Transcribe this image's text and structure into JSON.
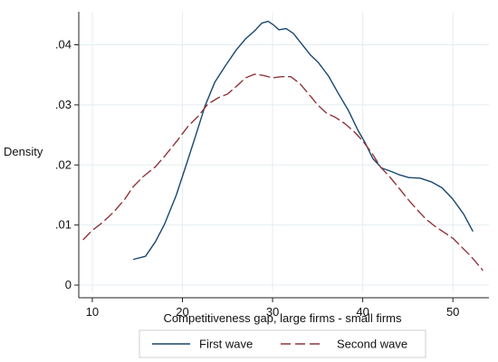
{
  "chart_data": {
    "type": "line",
    "title": "",
    "xlabel": "Competitiveness gap, large firms - small firms",
    "ylabel": "Density",
    "xlim": [
      8.5,
      54
    ],
    "ylim": [
      -0.0012,
      0.0455
    ],
    "x_ticks": [
      10,
      20,
      30,
      40,
      50
    ],
    "x_tick_labels": [
      "10",
      "20",
      "30",
      "40",
      "50"
    ],
    "y_ticks": [
      0,
      0.01,
      0.02,
      0.03,
      0.04
    ],
    "y_tick_labels": [
      "0",
      ".01",
      ".02",
      ".03",
      ".04"
    ],
    "grid": true,
    "legend_position": "bottom",
    "series": [
      {
        "name": "First wave",
        "color": "#1a476f",
        "dash": "solid",
        "points": [
          [
            14.6,
            0.0043
          ],
          [
            15.9,
            0.0048
          ],
          [
            17.0,
            0.0072
          ],
          [
            18.0,
            0.0101
          ],
          [
            19.3,
            0.0149
          ],
          [
            20.5,
            0.0204
          ],
          [
            21.6,
            0.0255
          ],
          [
            22.5,
            0.0298
          ],
          [
            23.6,
            0.0338
          ],
          [
            24.8,
            0.0366
          ],
          [
            26.0,
            0.0392
          ],
          [
            27.0,
            0.041
          ],
          [
            28.0,
            0.0423
          ],
          [
            28.8,
            0.0436
          ],
          [
            29.5,
            0.0439
          ],
          [
            30.1,
            0.0433
          ],
          [
            30.7,
            0.0425
          ],
          [
            31.5,
            0.0427
          ],
          [
            32.3,
            0.0419
          ],
          [
            33.2,
            0.0402
          ],
          [
            34.2,
            0.0383
          ],
          [
            35.1,
            0.037
          ],
          [
            36.2,
            0.0348
          ],
          [
            37.3,
            0.0319
          ],
          [
            38.4,
            0.0291
          ],
          [
            39.5,
            0.0257
          ],
          [
            40.3,
            0.0236
          ],
          [
            41.1,
            0.0211
          ],
          [
            42.1,
            0.0195
          ],
          [
            43.2,
            0.0189
          ],
          [
            44.0,
            0.0184
          ],
          [
            45.1,
            0.0179
          ],
          [
            46.4,
            0.0178
          ],
          [
            47.6,
            0.0172
          ],
          [
            48.8,
            0.0162
          ],
          [
            50.0,
            0.0143
          ],
          [
            51.2,
            0.0118
          ],
          [
            52.2,
            0.009
          ]
        ]
      },
      {
        "name": "Second wave",
        "color": "#90353b",
        "dash": "dashed",
        "points": [
          [
            9.0,
            0.0076
          ],
          [
            10.0,
            0.0091
          ],
          [
            11.2,
            0.0105
          ],
          [
            12.4,
            0.0122
          ],
          [
            13.6,
            0.0143
          ],
          [
            14.5,
            0.0163
          ],
          [
            15.6,
            0.018
          ],
          [
            17.0,
            0.0197
          ],
          [
            18.1,
            0.0216
          ],
          [
            19.5,
            0.0242
          ],
          [
            20.6,
            0.0264
          ],
          [
            21.8,
            0.0282
          ],
          [
            22.8,
            0.0301
          ],
          [
            24.0,
            0.0312
          ],
          [
            25.0,
            0.0318
          ],
          [
            26.0,
            0.0331
          ],
          [
            27.0,
            0.0345
          ],
          [
            28.0,
            0.0351
          ],
          [
            29.0,
            0.0349
          ],
          [
            30.0,
            0.0345
          ],
          [
            31.0,
            0.0347
          ],
          [
            32.0,
            0.0347
          ],
          [
            33.0,
            0.0336
          ],
          [
            34.0,
            0.0318
          ],
          [
            35.0,
            0.03
          ],
          [
            36.0,
            0.0286
          ],
          [
            37.0,
            0.0279
          ],
          [
            38.0,
            0.0269
          ],
          [
            39.0,
            0.0256
          ],
          [
            40.0,
            0.024
          ],
          [
            41.0,
            0.022
          ],
          [
            42.0,
            0.0196
          ],
          [
            43.0,
            0.018
          ],
          [
            44.0,
            0.0162
          ],
          [
            45.0,
            0.0143
          ],
          [
            46.0,
            0.0126
          ],
          [
            47.0,
            0.011
          ],
          [
            48.0,
            0.0098
          ],
          [
            49.0,
            0.0088
          ],
          [
            50.0,
            0.0078
          ],
          [
            51.0,
            0.0063
          ],
          [
            52.0,
            0.0048
          ],
          [
            53.3,
            0.0025
          ]
        ]
      }
    ]
  }
}
